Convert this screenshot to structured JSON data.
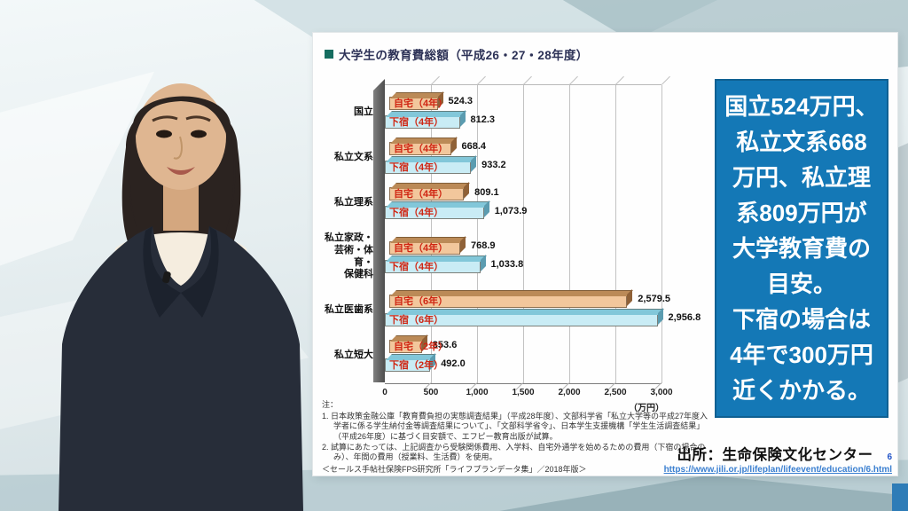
{
  "slide": {
    "title": "大学生の教育費総額（平成26・27・28年度）",
    "callout": {
      "bg_color": "#1478b6",
      "text_color": "#ffffff",
      "lines": [
        "国立524万円、",
        "私立文系668",
        "万円、私立理",
        "系809万円が",
        "大学教育費の",
        "目安。",
        "下宿の場合は",
        "4年で300万円",
        "近くかかる。"
      ]
    },
    "notes": {
      "heading": "注：",
      "items": [
        "1. 日本政策金融公庫「教育費負担の実態調査結果」（平成28年度）、文部科学省「私立大学等の平成27年度入学者に係る学生納付金等調査結果について」、「文部科学省令」、日本学生支援機構「学生生活調査結果」（平成26年度）に基づく目安額で、エフピー教育出版が試算。",
        "2. 試算にあたっては、上記調査から受験関係費用、入学料、自宅外通学を始めるための費用（下宿の場合のみ）、年間の費用（授業料、生活費）を使用。"
      ],
      "credit": "＜セールス手帖社保険FPS研究所「ライフプランデータ集」／2018年版＞"
    },
    "source": {
      "label": "出所：生命保険文化センター",
      "page_number": "6",
      "url": "https://www.jili.or.jp/lifeplan/lifeevent/education/6.html"
    }
  },
  "chart_data": {
    "type": "bar",
    "orientation": "horizontal",
    "title": "大学生の教育費総額（平成26・27・28年度）",
    "unit": "（万円）",
    "xlim": [
      0,
      3000
    ],
    "x_ticks": [
      "0",
      "500",
      "1,000",
      "1,500",
      "2,000",
      "2,500",
      "3,000"
    ],
    "grid": true,
    "series_colors": {
      "home": {
        "face": "#f2c79c",
        "top": "#bb8a57",
        "side": "#8f6137"
      },
      "boarding": {
        "face": "#c9ecf5",
        "top": "#82c7d9",
        "side": "#5b9cb0"
      }
    },
    "groups": [
      {
        "category": "国立",
        "bars": [
          {
            "name": "自宅（4年）",
            "value": 524.3,
            "display": "524.3"
          },
          {
            "name": "下宿（4年）",
            "value": 812.3,
            "display": "812.3"
          }
        ]
      },
      {
        "category": "私立文系",
        "bars": [
          {
            "name": "自宅（4年）",
            "value": 668.4,
            "display": "668.4"
          },
          {
            "name": "下宿（4年）",
            "value": 933.2,
            "display": "933.2"
          }
        ]
      },
      {
        "category": "私立理系",
        "bars": [
          {
            "name": "自宅（4年）",
            "value": 809.1,
            "display": "809.1"
          },
          {
            "name": "下宿（4年）",
            "value": 1073.9,
            "display": "1,073.9"
          }
        ]
      },
      {
        "category": "私立家政・\n芸術・体育・\n保健科",
        "bars": [
          {
            "name": "自宅（4年）",
            "value": 768.9,
            "display": "768.9"
          },
          {
            "name": "下宿（4年）",
            "value": 1033.8,
            "display": "1,033.8"
          }
        ]
      },
      {
        "category": "私立医歯系",
        "bars": [
          {
            "name": "自宅（6年）",
            "value": 2579.5,
            "display": "2,579.5"
          },
          {
            "name": "下宿（6年）",
            "value": 2956.8,
            "display": "2,956.8"
          }
        ]
      },
      {
        "category": "私立短大",
        "bars": [
          {
            "name": "自宅（2年）",
            "value": 353.6,
            "display": "353.6"
          },
          {
            "name": "下宿（2年）",
            "value": 492.0,
            "display": "492.0"
          }
        ]
      }
    ]
  }
}
